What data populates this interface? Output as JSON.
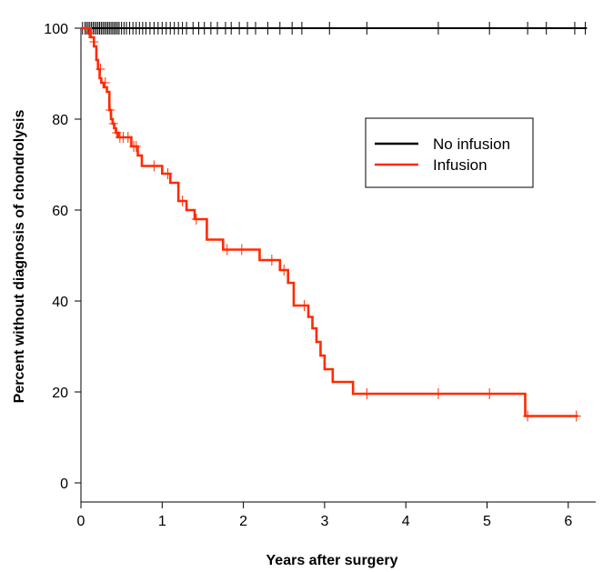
{
  "chart_data": {
    "type": "line",
    "chart_style": "kaplan-meier step",
    "xlabel": "Years after surgery",
    "ylabel": "Percent without diagnosis of chondrolysis",
    "xlim": [
      0,
      6.3
    ],
    "ylim": [
      0,
      100
    ],
    "x_ticks": [
      0,
      1,
      2,
      3,
      4,
      5,
      6
    ],
    "y_ticks": [
      0,
      20,
      40,
      60,
      80,
      100
    ],
    "grid": false,
    "legend_position": "upper-right",
    "legend": [
      {
        "label": "No infusion",
        "color": "#000000"
      },
      {
        "label": "Infusion",
        "color": "#ff2a00"
      }
    ],
    "series": [
      {
        "name": "No infusion",
        "color": "#000000",
        "step": {
          "x": [
            0,
            6.23
          ],
          "y": [
            100,
            100
          ]
        },
        "censor_x": [
          0.02,
          0.05,
          0.07,
          0.09,
          0.11,
          0.13,
          0.15,
          0.17,
          0.19,
          0.21,
          0.23,
          0.25,
          0.27,
          0.29,
          0.31,
          0.33,
          0.35,
          0.37,
          0.39,
          0.41,
          0.43,
          0.45,
          0.47,
          0.5,
          0.53,
          0.56,
          0.6,
          0.64,
          0.68,
          0.72,
          0.76,
          0.8,
          0.85,
          0.9,
          0.95,
          1.0,
          1.05,
          1.1,
          1.15,
          1.2,
          1.25,
          1.3,
          1.38,
          1.45,
          1.52,
          1.6,
          1.68,
          1.78,
          1.85,
          1.95,
          2.05,
          2.15,
          2.3,
          2.45,
          2.6,
          2.72,
          3.06,
          3.52,
          4.4,
          5.03,
          5.5,
          5.73,
          6.08,
          6.21
        ],
        "censor_y": 100
      },
      {
        "name": "Infusion",
        "color": "#ff2a00",
        "step": {
          "x": [
            0,
            0.12,
            0.16,
            0.19,
            0.21,
            0.23,
            0.25,
            0.28,
            0.32,
            0.35,
            0.37,
            0.39,
            0.41,
            0.43,
            0.46,
            0.62,
            0.7,
            0.75,
            1.0,
            1.1,
            1.2,
            1.3,
            1.4,
            1.55,
            1.75,
            2.2,
            2.45,
            2.55,
            2.62,
            2.8,
            2.85,
            2.9,
            2.95,
            3.0,
            3.1,
            3.35,
            5.47,
            6.12
          ],
          "y": [
            100,
            98,
            96,
            93,
            91,
            89,
            88,
            87,
            86,
            82,
            80,
            79,
            78,
            77,
            76,
            74,
            72,
            69.7,
            68,
            66,
            62,
            60,
            58,
            53.5,
            51.3,
            49,
            46.8,
            44,
            39,
            36.5,
            34,
            31,
            28,
            25,
            22.2,
            19.6,
            14.7,
            14.7
          ]
        },
        "censor_x": [
          0.1,
          0.16,
          0.24,
          0.3,
          0.36,
          0.4,
          0.44,
          0.48,
          0.52,
          0.58,
          0.65,
          0.68,
          0.9,
          1.07,
          1.25,
          1.42,
          1.8,
          1.98,
          2.35,
          2.5,
          2.75,
          3.52,
          4.4,
          5.03,
          5.5,
          6.1
        ],
        "censor_y": [
          99,
          97,
          91,
          88,
          82,
          79,
          77,
          76,
          76,
          76,
          74,
          74,
          69.7,
          68,
          62,
          58,
          51.3,
          51.3,
          49,
          46.8,
          39,
          19.6,
          19.6,
          19.6,
          14.7,
          14.7
        ]
      }
    ]
  }
}
